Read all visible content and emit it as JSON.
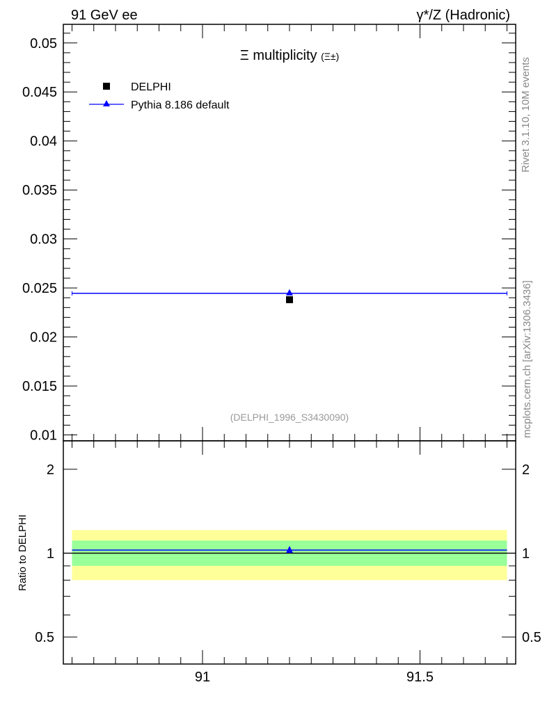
{
  "header": {
    "left": "91 GeV ee",
    "right": "γ*/Z (Hadronic)"
  },
  "side_labels": {
    "rivet": "Rivet 3.1.10,  10M events",
    "mcplots": "mcplots.cern.ch [arXiv:1306.3436]"
  },
  "chart_data": [
    {
      "type": "scatter",
      "title": "Ξ multiplicity",
      "title_sub": "(Ξ±)",
      "analysis": "(DELPHI_1996_S3430090)",
      "xlim": [
        90.68,
        91.72
      ],
      "ylim": [
        0.0094,
        0.0519
      ],
      "yticks": [
        "0.01",
        "0.015",
        "0.02",
        "0.025",
        "0.03",
        "0.035",
        "0.04",
        "0.045",
        "0.05"
      ],
      "legend_position": "top-left",
      "series": [
        {
          "name": "DELPHI",
          "marker": "square",
          "color": "#000000",
          "x": [
            91.2
          ],
          "y": [
            0.0238
          ],
          "yerr": [
            0.0
          ]
        },
        {
          "name": "Pythia 8.186 default",
          "marker": "triangle",
          "color": "#0000ff",
          "x": [
            91.2
          ],
          "xlow": [
            90.7
          ],
          "xhigh": [
            91.7
          ],
          "y": [
            0.02445
          ]
        }
      ]
    },
    {
      "type": "scatter",
      "ylabel": "Ratio to DELPHI",
      "yscale": "log",
      "xlim": [
        90.68,
        91.72
      ],
      "ylim": [
        0.4,
        2.53
      ],
      "yticks": [
        "0.5",
        "1",
        "2"
      ],
      "xticks": [
        "91",
        "91.5"
      ],
      "bands": [
        {
          "name": "total uncertainty",
          "color": "#ffff99",
          "low": 0.8,
          "high": 1.21
        },
        {
          "name": "stat uncertainty",
          "color": "#99ff99",
          "low": 0.9,
          "high": 1.11
        }
      ],
      "series": [
        {
          "name": "Pythia 8.186 default",
          "color": "#0000ff",
          "x": [
            91.2
          ],
          "xlow": [
            90.7
          ],
          "xhigh": [
            91.7
          ],
          "y": [
            1.026
          ]
        }
      ]
    }
  ]
}
